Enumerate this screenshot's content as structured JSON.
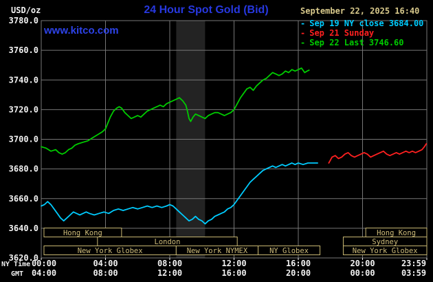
{
  "style": {
    "background": "#000000",
    "title_blue": "#2738e0",
    "watermark_blue": "#2d43e8",
    "date_tan": "#d8c98b",
    "session_tan": "#c9b873",
    "grid_gray": "#777777",
    "band_gray": "#232323",
    "axis_text": "#f2f2f2",
    "cyan": "#00ccff",
    "red": "#ff2020",
    "green": "#00cc00"
  },
  "header": {
    "units": "USD/oz",
    "title": "24 Hour Spot Gold (Bid)",
    "datetime": "September 22, 2025 16:40",
    "watermark": "www.kitco.com"
  },
  "legend": [
    {
      "dash": "-",
      "label": "Sep 19 NY close 3684.00",
      "color": "#00ccff"
    },
    {
      "dash": "-",
      "label": "Sep 21 Sunday",
      "color": "#ff2020"
    },
    {
      "dash": "-",
      "label": "Sep 22 Last 3746.60",
      "color": "#00cc00"
    }
  ],
  "axes": {
    "y_ticks": [
      "3780.0",
      "3760.0",
      "3740.0",
      "3720.0",
      "3700.0",
      "3680.0",
      "3660.0",
      "3640.0",
      "3620.0"
    ],
    "x_rows": [
      {
        "label": "NY Time",
        "ticks": [
          "00:00",
          "04:00",
          "08:00",
          "12:00",
          "16:00",
          "20:00",
          "23:59"
        ]
      },
      {
        "label": "GMT",
        "ticks": [
          "04:00",
          "08:00",
          "12:00",
          "16:00",
          "20:00",
          "00:00",
          "03:59"
        ]
      }
    ]
  },
  "sessions": [
    {
      "label": "Hong Kong",
      "row": 0,
      "start": 0.17,
      "end": 5.0
    },
    {
      "label": "Hong Kong",
      "row": 0,
      "start": 20.2,
      "end": 24.0
    },
    {
      "label": "London",
      "row": 1,
      "start": 3.5,
      "end": 12.2
    },
    {
      "label": "Sydney",
      "row": 1,
      "start": 18.8,
      "end": 24.0
    },
    {
      "label": "New York Globex",
      "row": 2,
      "start": 0.17,
      "end": 8.4
    },
    {
      "label": "New York NYMEX",
      "row": 2,
      "start": 8.4,
      "end": 13.5
    },
    {
      "label": "NY Globex",
      "row": 2,
      "start": 13.5,
      "end": 17.35
    },
    {
      "label": "New York Globex",
      "row": 2,
      "start": 18.8,
      "end": 24.0
    }
  ],
  "chart_data": {
    "type": "line",
    "title": "24 Hour Spot Gold (Bid)",
    "ylabel": "USD/oz",
    "xlabel": "NY Time (hours, 00:00-23:59)",
    "x_range": [
      0,
      24
    ],
    "y_range": [
      3620,
      3780
    ],
    "y_grid_step": 20,
    "x_grid_hours": [
      4,
      8,
      12,
      16,
      20
    ],
    "grid": true,
    "legend_position": "top-right",
    "prev_close": 3684.0,
    "last": 3746.6,
    "shaded_bands": [
      {
        "start": 8.4,
        "end": 10.2
      }
    ],
    "series": [
      {
        "name": "Sep 19 NY close",
        "color": "#00ccff",
        "close": 3684.0,
        "points": [
          [
            0.0,
            3655
          ],
          [
            0.2,
            3656
          ],
          [
            0.4,
            3658
          ],
          [
            0.6,
            3656
          ],
          [
            0.8,
            3653
          ],
          [
            1.0,
            3650
          ],
          [
            1.2,
            3647
          ],
          [
            1.4,
            3645
          ],
          [
            1.6,
            3647
          ],
          [
            1.8,
            3649
          ],
          [
            2.0,
            3651
          ],
          [
            2.2,
            3650
          ],
          [
            2.4,
            3649
          ],
          [
            2.6,
            3650
          ],
          [
            2.8,
            3651
          ],
          [
            3.0,
            3650
          ],
          [
            3.3,
            3649
          ],
          [
            3.6,
            3650
          ],
          [
            3.9,
            3651
          ],
          [
            4.2,
            3650
          ],
          [
            4.5,
            3652
          ],
          [
            4.8,
            3653
          ],
          [
            5.1,
            3652
          ],
          [
            5.4,
            3653
          ],
          [
            5.7,
            3654
          ],
          [
            6.0,
            3653
          ],
          [
            6.3,
            3654
          ],
          [
            6.6,
            3655
          ],
          [
            6.9,
            3654
          ],
          [
            7.2,
            3655
          ],
          [
            7.5,
            3654
          ],
          [
            7.8,
            3655
          ],
          [
            8.0,
            3656
          ],
          [
            8.2,
            3655
          ],
          [
            8.4,
            3653
          ],
          [
            8.6,
            3651
          ],
          [
            8.8,
            3649
          ],
          [
            9.0,
            3647
          ],
          [
            9.2,
            3645
          ],
          [
            9.4,
            3646
          ],
          [
            9.6,
            3648
          ],
          [
            9.8,
            3646
          ],
          [
            10.0,
            3645
          ],
          [
            10.2,
            3643
          ],
          [
            10.4,
            3645
          ],
          [
            10.6,
            3646
          ],
          [
            10.8,
            3648
          ],
          [
            11.0,
            3649
          ],
          [
            11.2,
            3650
          ],
          [
            11.4,
            3651
          ],
          [
            11.6,
            3653
          ],
          [
            11.8,
            3654
          ],
          [
            12.0,
            3656
          ],
          [
            12.2,
            3659
          ],
          [
            12.4,
            3662
          ],
          [
            12.6,
            3665
          ],
          [
            12.8,
            3668
          ],
          [
            13.0,
            3671
          ],
          [
            13.2,
            3673
          ],
          [
            13.4,
            3675
          ],
          [
            13.6,
            3677
          ],
          [
            13.8,
            3679
          ],
          [
            14.0,
            3680
          ],
          [
            14.2,
            3681
          ],
          [
            14.4,
            3682
          ],
          [
            14.6,
            3681
          ],
          [
            14.8,
            3682
          ],
          [
            15.0,
            3683
          ],
          [
            15.2,
            3682
          ],
          [
            15.4,
            3683
          ],
          [
            15.6,
            3684
          ],
          [
            15.8,
            3683
          ],
          [
            16.0,
            3684
          ],
          [
            16.3,
            3683
          ],
          [
            16.6,
            3684
          ],
          [
            16.9,
            3684
          ],
          [
            17.2,
            3684
          ]
        ]
      },
      {
        "name": "Sep 21 Sunday",
        "color": "#ff2020",
        "points": [
          [
            17.9,
            3684
          ],
          [
            18.0,
            3686
          ],
          [
            18.1,
            3688
          ],
          [
            18.3,
            3689
          ],
          [
            18.5,
            3687
          ],
          [
            18.7,
            3688
          ],
          [
            18.9,
            3690
          ],
          [
            19.1,
            3691
          ],
          [
            19.3,
            3689
          ],
          [
            19.5,
            3688
          ],
          [
            19.7,
            3689
          ],
          [
            19.9,
            3690
          ],
          [
            20.1,
            3691
          ],
          [
            20.3,
            3690
          ],
          [
            20.5,
            3688
          ],
          [
            20.7,
            3689
          ],
          [
            20.9,
            3690
          ],
          [
            21.1,
            3691
          ],
          [
            21.3,
            3692
          ],
          [
            21.5,
            3690
          ],
          [
            21.7,
            3689
          ],
          [
            21.9,
            3690
          ],
          [
            22.1,
            3691
          ],
          [
            22.3,
            3690
          ],
          [
            22.5,
            3691
          ],
          [
            22.7,
            3692
          ],
          [
            22.9,
            3691
          ],
          [
            23.1,
            3692
          ],
          [
            23.3,
            3691
          ],
          [
            23.5,
            3692
          ],
          [
            23.7,
            3693
          ],
          [
            23.85,
            3695
          ],
          [
            23.97,
            3697
          ]
        ]
      },
      {
        "name": "Sep 22 Last",
        "color": "#00cc00",
        "last": 3746.6,
        "points": [
          [
            0.0,
            3695
          ],
          [
            0.3,
            3694
          ],
          [
            0.6,
            3692
          ],
          [
            0.9,
            3693
          ],
          [
            1.1,
            3691
          ],
          [
            1.3,
            3690
          ],
          [
            1.5,
            3691
          ],
          [
            1.7,
            3693
          ],
          [
            1.9,
            3694
          ],
          [
            2.1,
            3696
          ],
          [
            2.3,
            3697
          ],
          [
            2.6,
            3698
          ],
          [
            2.9,
            3699
          ],
          [
            3.2,
            3701
          ],
          [
            3.5,
            3703
          ],
          [
            3.8,
            3705
          ],
          [
            4.0,
            3707
          ],
          [
            4.15,
            3711
          ],
          [
            4.3,
            3715
          ],
          [
            4.5,
            3719
          ],
          [
            4.7,
            3721
          ],
          [
            4.85,
            3722
          ],
          [
            5.0,
            3721
          ],
          [
            5.2,
            3718
          ],
          [
            5.4,
            3716
          ],
          [
            5.6,
            3714
          ],
          [
            5.8,
            3715
          ],
          [
            6.0,
            3716
          ],
          [
            6.2,
            3715
          ],
          [
            6.4,
            3717
          ],
          [
            6.6,
            3719
          ],
          [
            6.8,
            3720
          ],
          [
            7.0,
            3721
          ],
          [
            7.2,
            3722
          ],
          [
            7.4,
            3723
          ],
          [
            7.6,
            3722
          ],
          [
            7.8,
            3724
          ],
          [
            8.0,
            3725
          ],
          [
            8.2,
            3726
          ],
          [
            8.4,
            3727
          ],
          [
            8.6,
            3728
          ],
          [
            8.8,
            3726
          ],
          [
            9.0,
            3723
          ],
          [
            9.1,
            3719
          ],
          [
            9.2,
            3714
          ],
          [
            9.3,
            3712
          ],
          [
            9.45,
            3715
          ],
          [
            9.6,
            3717
          ],
          [
            9.8,
            3716
          ],
          [
            10.0,
            3715
          ],
          [
            10.2,
            3714
          ],
          [
            10.4,
            3716
          ],
          [
            10.6,
            3717
          ],
          [
            10.8,
            3718
          ],
          [
            11.0,
            3718
          ],
          [
            11.2,
            3717
          ],
          [
            11.4,
            3716
          ],
          [
            11.6,
            3717
          ],
          [
            11.8,
            3718
          ],
          [
            12.0,
            3720
          ],
          [
            12.2,
            3724
          ],
          [
            12.4,
            3728
          ],
          [
            12.6,
            3731
          ],
          [
            12.8,
            3734
          ],
          [
            13.0,
            3735
          ],
          [
            13.2,
            3733
          ],
          [
            13.4,
            3736
          ],
          [
            13.6,
            3738
          ],
          [
            13.8,
            3740
          ],
          [
            14.0,
            3741
          ],
          [
            14.2,
            3743
          ],
          [
            14.4,
            3745
          ],
          [
            14.6,
            3744
          ],
          [
            14.8,
            3743
          ],
          [
            15.0,
            3744
          ],
          [
            15.2,
            3746
          ],
          [
            15.4,
            3745
          ],
          [
            15.6,
            3747
          ],
          [
            15.8,
            3746
          ],
          [
            16.0,
            3747
          ],
          [
            16.2,
            3748
          ],
          [
            16.4,
            3745
          ],
          [
            16.55,
            3746
          ],
          [
            16.67,
            3746.6
          ]
        ]
      }
    ]
  }
}
